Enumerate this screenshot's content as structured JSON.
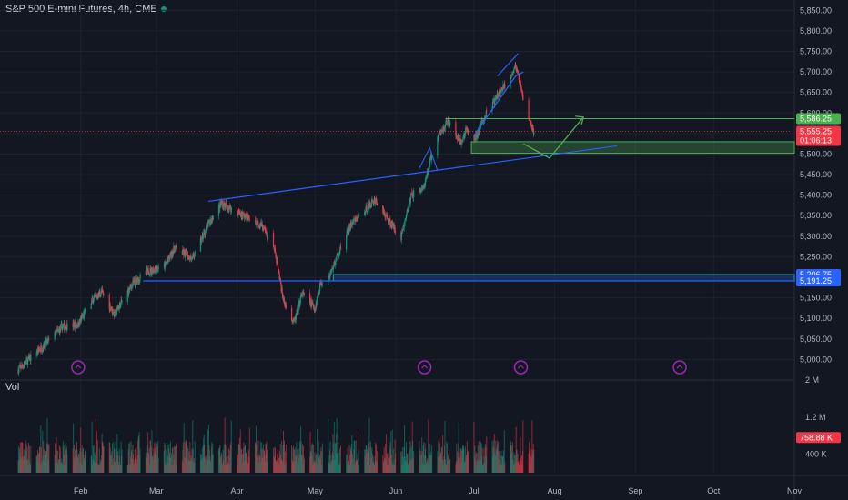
{
  "header": {
    "symbol": "S&P 500 E-mini Futures, 4h, CME"
  },
  "volume_pane": {
    "label": "Vol"
  },
  "chart_data": {
    "type": "candlestick",
    "title": "S&P 500 E-mini Futures, 4h, CME",
    "ylim": [
      4950,
      5875
    ],
    "y_ticks": [
      "5,850.00",
      "5,800.00",
      "5,750.00",
      "5,700.00",
      "5,650.00",
      "5,600.00",
      "5,550.00",
      "5,500.00",
      "5,450.00",
      "5,400.00",
      "5,350.00",
      "5,300.00",
      "5,250.00",
      "5,200.00",
      "5,150.00",
      "5,100.00",
      "5,050.00",
      "5,000.00"
    ],
    "y_tick_values": [
      5850,
      5800,
      5750,
      5700,
      5650,
      5600,
      5550,
      5500,
      5450,
      5400,
      5350,
      5300,
      5250,
      5200,
      5150,
      5100,
      5050,
      5000
    ],
    "x_ticks": [
      "Feb",
      "Mar",
      "Apr",
      "May",
      "Jun",
      "Jul",
      "Aug",
      "Sep",
      "Oct",
      "Nov"
    ],
    "price_path": [
      [
        "2024-01-08",
        4975
      ],
      [
        "2024-01-12",
        5000
      ],
      [
        "2024-01-18",
        5035
      ],
      [
        "2024-01-25",
        5080
      ],
      [
        "2024-01-31",
        5085
      ],
      [
        "2024-02-05",
        5140
      ],
      [
        "2024-02-09",
        5165
      ],
      [
        "2024-02-14",
        5110
      ],
      [
        "2024-02-21",
        5185
      ],
      [
        "2024-02-27",
        5215
      ],
      [
        "2024-03-04",
        5225
      ],
      [
        "2024-03-08",
        5270
      ],
      [
        "2024-03-15",
        5245
      ],
      [
        "2024-03-21",
        5330
      ],
      [
        "2024-03-26",
        5380
      ],
      [
        "2024-04-01",
        5360
      ],
      [
        "2024-04-05",
        5345
      ],
      [
        "2024-04-10",
        5330
      ],
      [
        "2024-04-15",
        5280
      ],
      [
        "2024-04-19",
        5140
      ],
      [
        "2024-04-23",
        5090
      ],
      [
        "2024-04-26",
        5160
      ],
      [
        "2024-05-01",
        5125
      ],
      [
        "2024-05-03",
        5185
      ],
      [
        "2024-05-07",
        5210
      ],
      [
        "2024-05-10",
        5260
      ],
      [
        "2024-05-15",
        5330
      ],
      [
        "2024-05-20",
        5360
      ],
      [
        "2024-05-24",
        5390
      ],
      [
        "2024-05-29",
        5340
      ],
      [
        "2024-06-03",
        5300
      ],
      [
        "2024-06-07",
        5400
      ],
      [
        "2024-06-12",
        5420
      ],
      [
        "2024-06-14",
        5480
      ],
      [
        "2024-06-17",
        5540
      ],
      [
        "2024-06-21",
        5580
      ],
      [
        "2024-06-26",
        5525
      ],
      [
        "2024-06-28",
        5560
      ],
      [
        "2024-07-01",
        5530
      ],
      [
        "2024-07-05",
        5590
      ],
      [
        "2024-07-10",
        5640
      ],
      [
        "2024-07-15",
        5690
      ],
      [
        "2024-07-17",
        5715
      ],
      [
        "2024-07-19",
        5660
      ],
      [
        "2024-07-22",
        5585
      ],
      [
        "2024-07-24",
        5555
      ]
    ],
    "annotations": {
      "resistance_line": [
        5586.25,
        5586.25
      ],
      "demand_zone": [
        5502,
        5530
      ],
      "support_zone": [
        5191.25,
        5206.75
      ],
      "rising_trendline": [
        [
          5385,
          "2024-03-21"
        ],
        [
          5520,
          "2024-08-25"
        ]
      ],
      "horizontal_support": 5191.25,
      "projection": [
        [
          5525,
          "2024-07-20"
        ],
        [
          5490,
          "2024-07-30"
        ],
        [
          5590,
          "2024-08-12"
        ]
      ]
    },
    "price_labels": [
      {
        "text": "5,586.25",
        "value": 5586.25,
        "color": "#4caf50"
      },
      {
        "text": "5,555.25",
        "value": 5555.25,
        "color": "#f23645"
      },
      {
        "text": "01:06:13",
        "value": 5533,
        "color": "#f23645"
      },
      {
        "text": "5,206.75",
        "value": 5206.75,
        "color": "#2962ff"
      },
      {
        "text": "5,191.25",
        "value": 5191.25,
        "color": "#2962ff"
      }
    ],
    "volume": {
      "ylim": [
        0,
        2000000
      ],
      "ticks": [
        "2 M",
        "1.2 M",
        "400 K"
      ],
      "tick_values": [
        2000000,
        1200000,
        400000
      ],
      "last_label": "758.88 K"
    },
    "event_markers": 4,
    "colors": {
      "up": "#089981",
      "down": "#f23645",
      "line": "#2962ff",
      "zone": "#4caf50"
    }
  }
}
